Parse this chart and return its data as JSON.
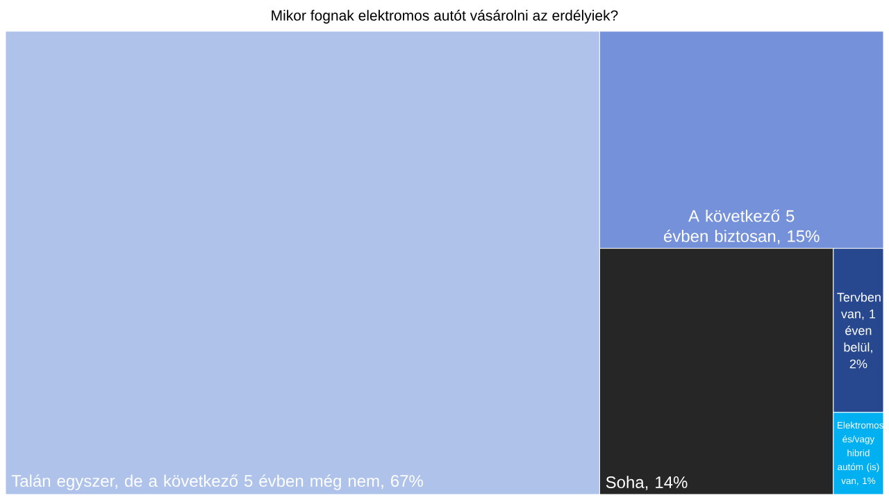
{
  "chart_data": {
    "type": "other",
    "title": "Mikor fognak elektromos autót vásárolni az erdélyiek?",
    "categories": [
      "Talán egyszer, de a következő 5 évben még nem",
      "A következő 5 évben biztosan",
      "Soha",
      "Tervben van, 1 éven belül",
      "Elektromos és/vagy hibrid autóm (is) van"
    ],
    "values": [
      67,
      15,
      14,
      2,
      1
    ],
    "value_labels": [
      ", 67%",
      ", 15%",
      ", 14%",
      ", 2%",
      ", 1%"
    ],
    "colors": [
      "#aec2ea",
      "#7491d9",
      "#262626",
      "#27478e",
      "#00b0f0"
    ]
  }
}
